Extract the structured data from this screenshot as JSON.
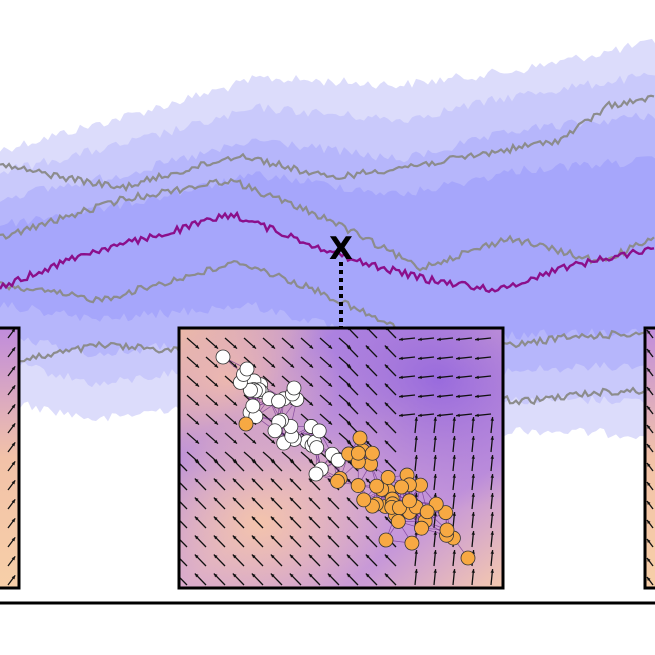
{
  "figure": {
    "marker_label": "X",
    "colors": {
      "band_outer": "#dcdcfb",
      "band_2": "#c9c9fb",
      "band_3": "#b6b6fb",
      "band_inner": "#a6a6fb",
      "median_path": "#8b0f8b",
      "sample_paths": "#8c8c8c",
      "cluster_white": "#ffffff",
      "cluster_orange": "#f7a943",
      "arrow": "#111111",
      "frame": "#000000"
    },
    "panels": [
      "left-field-panel",
      "center-field-panel",
      "right-field-panel"
    ]
  }
}
